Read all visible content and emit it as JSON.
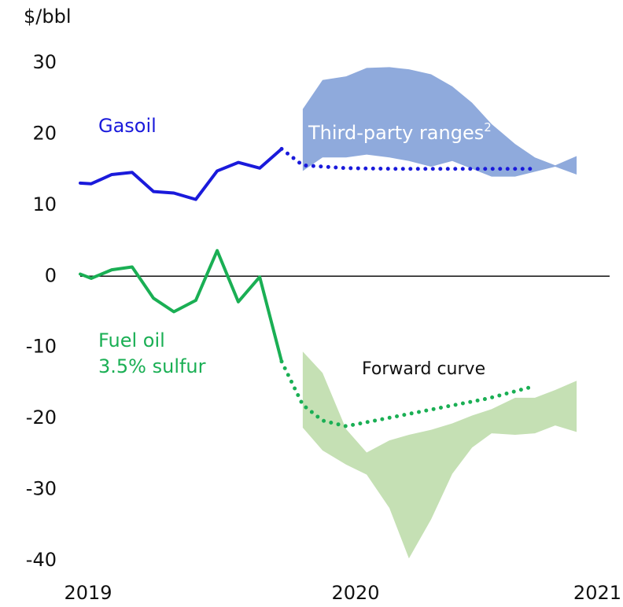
{
  "chart_data": {
    "type": "line",
    "y_label": "$/bbl",
    "xlim": [
      2019,
      2021
    ],
    "xticks": [
      2019,
      2020,
      2021
    ],
    "ylim": [
      -40,
      30
    ],
    "yticks": [
      30,
      20,
      10,
      0,
      -10,
      -20,
      -30,
      -40
    ],
    "zero_line": true,
    "bands": [
      {
        "color": "#8faadc",
        "x": [
          2019.832,
          2019.906,
          2019.994,
          2020.071,
          2020.156,
          2020.229,
          2020.312,
          2020.391,
          2020.465,
          2020.538,
          2020.626,
          2020.7,
          2020.776,
          2020.856
        ],
        "upper": [
          23.5,
          27.6,
          28.1,
          29.3,
          29.4,
          29.1,
          28.4,
          26.7,
          24.4,
          21.4,
          18.6,
          16.7,
          15.6,
          16.9
        ],
        "lower": [
          14.8,
          16.7,
          16.7,
          17.1,
          16.7,
          16.2,
          15.4,
          16.2,
          15.1,
          14.0,
          14.0,
          14.7,
          15.4,
          14.3
        ]
      },
      {
        "color": "#c5e0b4",
        "x": [
          2019.832,
          2019.906,
          2019.994,
          2020.071,
          2020.156,
          2020.229,
          2020.312,
          2020.391,
          2020.465,
          2020.538,
          2020.626,
          2020.7,
          2020.776,
          2020.856
        ],
        "upper": [
          -10.6,
          -13.6,
          -21.5,
          -24.8,
          -23.1,
          -22.3,
          -21.6,
          -20.7,
          -19.6,
          -18.7,
          -17.1,
          -17.1,
          -16.0,
          -14.7
        ],
        "lower": [
          -21.3,
          -24.5,
          -26.5,
          -27.9,
          -32.6,
          -39.7,
          -34.2,
          -27.8,
          -24.1,
          -22.1,
          -22.3,
          -22.1,
          -21.0,
          -21.9
        ]
      }
    ],
    "series": [
      {
        "name": "Gasoil",
        "color": "#1a1adb",
        "style": "solid",
        "x": [
          2019,
          2019.041,
          2019.118,
          2019.194,
          2019.274,
          2019.35,
          2019.432,
          2019.512,
          2019.591,
          2019.671,
          2019.753
        ],
        "values": [
          13.1,
          13.0,
          14.3,
          14.6,
          11.9,
          11.7,
          10.8,
          14.8,
          16.0,
          15.2,
          17.9
        ]
      },
      {
        "color": "#1a1adb",
        "style": "dotted",
        "x": [
          2019.753,
          2019.832,
          2019.994,
          2020.171,
          2020.347,
          2020.524,
          2020.7
        ],
        "values": [
          17.9,
          15.6,
          15.2,
          15.1,
          15.1,
          15.1,
          15.1
        ]
      },
      {
        "label_lines": [
          "Fuel oil",
          "3.5% sulfur"
        ],
        "color": "#1aaf54",
        "style": "solid",
        "x": [
          2019,
          2019.041,
          2019.118,
          2019.194,
          2019.274,
          2019.35,
          2019.432,
          2019.512,
          2019.591,
          2019.671,
          2019.753
        ],
        "values": [
          0.3,
          -0.3,
          0.9,
          1.3,
          -3.1,
          -5.0,
          -3.4,
          3.6,
          -3.6,
          -0.1,
          -12.0
        ]
      },
      {
        "color": "#1aaf54",
        "style": "dotted",
        "x": [
          2019.753,
          2019.832,
          2019.906,
          2019.994,
          2020.171,
          2020.347,
          2020.524,
          2020.685
        ],
        "values": [
          -12.0,
          -18.1,
          -20.3,
          -21.1,
          -19.8,
          -18.5,
          -17.2,
          -15.6
        ]
      }
    ],
    "annotations": [
      {
        "text": "Third-party ranges",
        "sup": "2"
      },
      {
        "text": "Forward curve"
      }
    ]
  }
}
